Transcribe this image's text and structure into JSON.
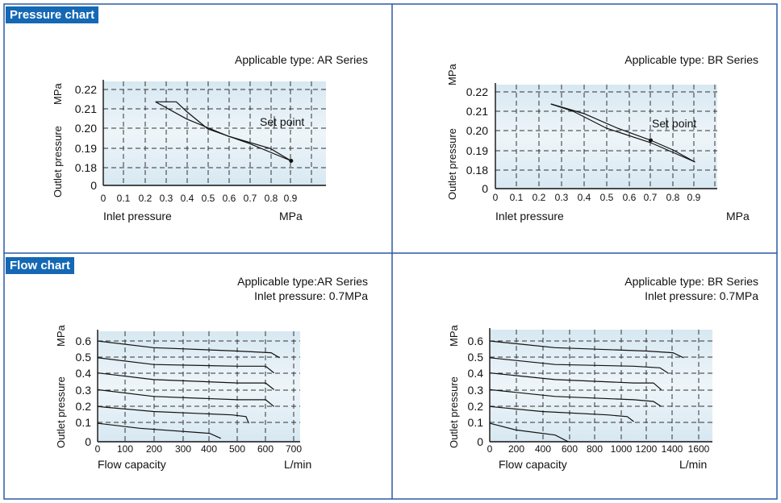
{
  "headers": {
    "pressure": "Pressure chart",
    "flow": "Flow chart"
  },
  "pressure_ar": {
    "applicable": "Applicable type: AR Series",
    "ylabel": "Outlet pressure",
    "yunit": "MPa",
    "xlabel": "Inlet pressure",
    "xunit": "MPa",
    "annotation": "Set point",
    "yticks": [
      "0.22",
      "0.21",
      "0.20",
      "0.19",
      "0.18",
      "0"
    ],
    "xticks": [
      "0",
      "0.1",
      "0.2",
      "0.3",
      "0.4",
      "0.5",
      "0.6",
      "0.7",
      "0.8",
      "0.9"
    ]
  },
  "pressure_br": {
    "applicable": "Applicable type: BR Series",
    "ylabel": "Outlet pressure",
    "yunit": "MPa",
    "xlabel": "Inlet pressure",
    "xunit": "MPa",
    "annotation": "Set point",
    "yticks": [
      "0.22",
      "0.21",
      "0.20",
      "0.19",
      "0.18",
      "0"
    ],
    "xticks": [
      "0",
      "0.1",
      "0.2",
      "0.3",
      "0.4",
      "0.5",
      "0.6",
      "0.7",
      "0.8",
      "0.9"
    ]
  },
  "flow_ar": {
    "applicable": "Applicable type:AR Series",
    "inlet": "Inlet pressure: 0.7MPa",
    "ylabel": "Outlet pressure",
    "yunit": "MPa",
    "xlabel": "Flow capacity",
    "xunit": "L/min",
    "yticks": [
      "0.6",
      "0.5",
      "0.4",
      "0.3",
      "0.2",
      "0.1",
      "0"
    ],
    "xticks": [
      "0",
      "100",
      "200",
      "300",
      "400",
      "500",
      "600",
      "700"
    ]
  },
  "flow_br": {
    "applicable": "Applicable type: BR Series",
    "inlet": "Inlet pressure: 0.7MPa",
    "ylabel": "Outlet pressure",
    "yunit": "MPa",
    "xlabel": "Flow capacity",
    "xunit": "L/min",
    "yticks": [
      "0.6",
      "0.5",
      "0.4",
      "0.3",
      "0.2",
      "0.1",
      "0"
    ],
    "xticks": [
      "0",
      "200",
      "400",
      "600",
      "800",
      "1000",
      "1200",
      "1400",
      "1600"
    ]
  },
  "chart_data": [
    {
      "type": "line",
      "title": "Applicable type: AR Series",
      "xlabel": "Inlet pressure",
      "ylabel": "Outlet pressure",
      "xlim": [
        0,
        1.0
      ],
      "yticks": [
        0.18,
        0.19,
        0.2,
        0.21,
        0.22
      ],
      "series": [
        {
          "name": "",
          "x": [
            0.9,
            0.7,
            0.5,
            0.4,
            0.35,
            0.28,
            0.25
          ],
          "y": [
            0.19,
            0.197,
            0.203,
            0.21,
            0.214,
            0.214,
            0.214
          ]
        },
        {
          "name": "",
          "x": [
            0.25,
            0.4,
            0.6,
            0.8,
            0.9
          ],
          "y": [
            0.214,
            0.207,
            0.2,
            0.195,
            0.19
          ]
        }
      ],
      "set_point": {
        "x": 0.9,
        "y": 0.19
      }
    },
    {
      "type": "line",
      "title": "Applicable type: BR Series",
      "xlabel": "Inlet pressure",
      "ylabel": "Outlet pressure",
      "xlim": [
        0,
        1.0
      ],
      "yticks": [
        0.18,
        0.19,
        0.2,
        0.21,
        0.22
      ],
      "series": [
        {
          "name": "",
          "x": [
            0.25,
            0.4,
            0.55,
            0.7,
            0.8,
            0.9
          ],
          "y": [
            0.215,
            0.211,
            0.205,
            0.2,
            0.196,
            0.191
          ]
        },
        {
          "name": "",
          "x": [
            0.9,
            0.7,
            0.5,
            0.35,
            0.25
          ],
          "y": [
            0.191,
            0.199,
            0.205,
            0.212,
            0.215
          ]
        }
      ],
      "set_point": {
        "x": 0.7,
        "y": 0.2
      }
    },
    {
      "type": "line",
      "title": "Applicable type:AR Series",
      "xlabel": "Flow capacity",
      "ylabel": "Outlet pressure",
      "xlim": [
        0,
        750
      ],
      "ylim": [
        0,
        0.65
      ],
      "series": [
        {
          "name": "",
          "x": [
            0,
            200,
            500,
            620,
            650
          ],
          "y": [
            0.6,
            0.56,
            0.54,
            0.53,
            0.5
          ]
        },
        {
          "name": "",
          "x": [
            0,
            200,
            500,
            600,
            630
          ],
          "y": [
            0.5,
            0.46,
            0.45,
            0.45,
            0.41
          ]
        },
        {
          "name": "",
          "x": [
            0,
            200,
            500,
            600,
            630
          ],
          "y": [
            0.41,
            0.37,
            0.35,
            0.35,
            0.31
          ]
        },
        {
          "name": "",
          "x": [
            0,
            200,
            500,
            600,
            630
          ],
          "y": [
            0.31,
            0.27,
            0.25,
            0.25,
            0.21
          ]
        },
        {
          "name": "",
          "x": [
            0,
            200,
            480,
            530,
            540
          ],
          "y": [
            0.21,
            0.18,
            0.16,
            0.15,
            0.11
          ]
        },
        {
          "name": "",
          "x": [
            0,
            150,
            400,
            440
          ],
          "y": [
            0.11,
            0.08,
            0.05,
            0.02
          ]
        }
      ]
    },
    {
      "type": "line",
      "title": "Applicable type: BR Series",
      "xlabel": "Flow capacity",
      "ylabel": "Outlet pressure",
      "xlim": [
        0,
        1750
      ],
      "ylim": [
        0,
        0.65
      ],
      "series": [
        {
          "name": "",
          "x": [
            0,
            500,
            1200,
            1400,
            1480
          ],
          "y": [
            0.6,
            0.56,
            0.54,
            0.53,
            0.5
          ]
        },
        {
          "name": "",
          "x": [
            0,
            500,
            1100,
            1300,
            1360
          ],
          "y": [
            0.5,
            0.46,
            0.45,
            0.44,
            0.41
          ]
        },
        {
          "name": "",
          "x": [
            0,
            500,
            1100,
            1250,
            1310
          ],
          "y": [
            0.41,
            0.37,
            0.35,
            0.35,
            0.31
          ]
        },
        {
          "name": "",
          "x": [
            0,
            500,
            1100,
            1250,
            1310
          ],
          "y": [
            0.31,
            0.27,
            0.25,
            0.24,
            0.21
          ]
        },
        {
          "name": "",
          "x": [
            0,
            400,
            900,
            1050,
            1100
          ],
          "y": [
            0.21,
            0.18,
            0.16,
            0.15,
            0.12
          ]
        },
        {
          "name": "",
          "x": [
            0,
            200,
            500,
            600
          ],
          "y": [
            0.11,
            0.07,
            0.04,
            0.0
          ]
        }
      ]
    }
  ]
}
